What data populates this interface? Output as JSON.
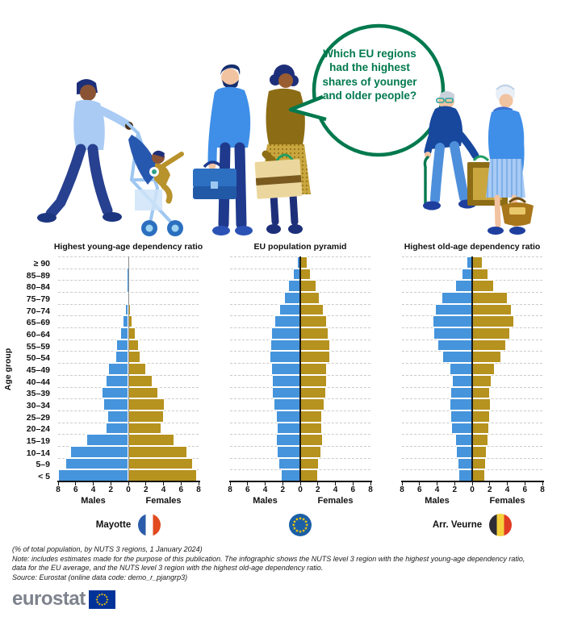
{
  "speech_bubble": {
    "text_lines": [
      "Which EU regions",
      "had the highest",
      "shares of younger",
      "and older people?"
    ],
    "color": "#00794E"
  },
  "colors": {
    "male_bar": "#4594DC",
    "female_bar": "#B6921E",
    "bubble_green": "#00794E",
    "eu_flag_blue": "#1B5FA6",
    "star_yellow": "#FFCC00",
    "logo_blue": "#003399"
  },
  "age_axis_title": "Age group",
  "age_groups_top_to_bottom": [
    "≥ 90",
    "85–89",
    "80–84",
    "75–79",
    "70–74",
    "65–69",
    "60–64",
    "55–59",
    "50–54",
    "45–49",
    "40–44",
    "35–39",
    "30–34",
    "25–29",
    "20–24",
    "15–19",
    "10–14",
    "5–9",
    "< 5"
  ],
  "x_axis": {
    "ticks": [
      "8",
      "6",
      "4",
      "2",
      "0",
      "2",
      "4",
      "6",
      "8"
    ],
    "max": 8,
    "label_left": "Males",
    "label_right": "Females"
  },
  "chart_data": [
    {
      "type": "bar",
      "subtype": "population-pyramid",
      "title": "Highest young-age dependency ratio",
      "region": "Mayotte",
      "flag": "FR",
      "units": "% of total population",
      "categories": [
        "≥ 90",
        "85–89",
        "80–84",
        "75–79",
        "70–74",
        "65–69",
        "60–64",
        "55–59",
        "50–54",
        "45–49",
        "40–44",
        "35–39",
        "30–34",
        "25–29",
        "20–24",
        "15–19",
        "10–14",
        "5–9",
        "< 5"
      ],
      "series": [
        {
          "name": "Males",
          "values": [
            0.02,
            0.05,
            0.1,
            0.2,
            0.35,
            0.65,
            0.9,
            1.35,
            1.5,
            2.3,
            2.6,
            3.0,
            2.85,
            2.4,
            2.6,
            4.8,
            6.6,
            7.2,
            8.0
          ]
        },
        {
          "name": "Females",
          "values": [
            0.02,
            0.05,
            0.1,
            0.2,
            0.3,
            0.5,
            0.85,
            1.15,
            1.4,
            2.0,
            2.8,
            3.4,
            4.1,
            4.0,
            3.8,
            5.2,
            6.7,
            7.4,
            7.8
          ]
        }
      ]
    },
    {
      "type": "bar",
      "subtype": "population-pyramid",
      "title": "EU population pyramid",
      "region": "",
      "flag": "EU",
      "units": "% of total population",
      "categories": [
        "≥ 90",
        "85–89",
        "80–84",
        "75–79",
        "70–74",
        "65–69",
        "60–64",
        "55–59",
        "50–54",
        "45–49",
        "40–44",
        "35–39",
        "30–34",
        "25–29",
        "20–24",
        "15–19",
        "10–14",
        "5–9",
        "< 5"
      ],
      "series": [
        {
          "name": "Males",
          "values": [
            0.4,
            0.8,
            1.4,
            1.8,
            2.4,
            2.9,
            3.3,
            3.4,
            3.5,
            3.3,
            3.2,
            3.2,
            3.0,
            2.8,
            2.7,
            2.8,
            2.7,
            2.5,
            2.2
          ]
        },
        {
          "name": "Females",
          "values": [
            0.8,
            1.2,
            1.8,
            2.2,
            2.7,
            3.0,
            3.2,
            3.4,
            3.4,
            3.0,
            3.0,
            2.9,
            2.8,
            2.5,
            2.5,
            2.55,
            2.4,
            2.1,
            2.0
          ]
        }
      ]
    },
    {
      "type": "bar",
      "subtype": "population-pyramid",
      "title": "Highest old-age dependency ratio",
      "region": "Arr. Veurne",
      "flag": "BE",
      "units": "% of total population",
      "categories": [
        "≥ 90",
        "85–89",
        "80–84",
        "75–79",
        "70–74",
        "65–69",
        "60–64",
        "55–59",
        "50–54",
        "45–49",
        "40–44",
        "35–39",
        "30–34",
        "25–29",
        "20–24",
        "15–19",
        "10–14",
        "5–9",
        "< 5"
      ],
      "series": [
        {
          "name": "Males",
          "values": [
            0.65,
            1.2,
            1.9,
            3.5,
            4.2,
            4.5,
            4.4,
            4.0,
            3.4,
            2.6,
            2.3,
            2.5,
            2.55,
            2.45,
            2.4,
            1.9,
            1.8,
            1.7,
            1.55
          ]
        },
        {
          "name": "Females",
          "values": [
            1.15,
            1.8,
            2.5,
            4.0,
            4.55,
            4.8,
            4.3,
            3.9,
            3.3,
            2.6,
            2.25,
            2.05,
            2.1,
            2.0,
            1.95,
            1.8,
            1.7,
            1.6,
            1.45
          ]
        }
      ]
    }
  ],
  "footer": {
    "subtitle": "(% of total population, by NUTS 3 regions, 1 January 2024)",
    "note": "Note: includes estimates made for the purpose of this publication. The infographic shows the NUTS level 3 region with the highest young-age dependency ratio, data for the EU average, and the NUTS level 3 region with the highest old-age dependency ratio.",
    "source": "Source: Eurostat (online data code: demo_r_pjangrp3)"
  },
  "logo": {
    "text": "eurostat"
  }
}
